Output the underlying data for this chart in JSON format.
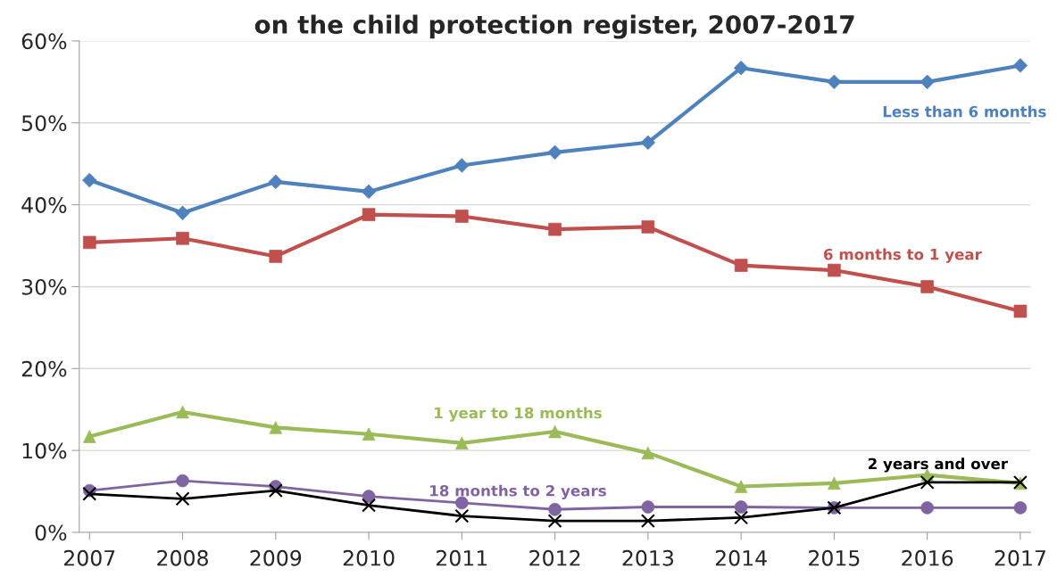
{
  "chart_data": {
    "type": "line",
    "title": "on the child protection register, 2007-2017",
    "categories": [
      "2007",
      "2008",
      "2009",
      "2010",
      "2011",
      "2012",
      "2013",
      "2014",
      "2015",
      "2016",
      "2017"
    ],
    "ylim": [
      0,
      60
    ],
    "yticks": [
      {
        "value": 0,
        "label": "0%"
      },
      {
        "value": 10,
        "label": "10%"
      },
      {
        "value": 20,
        "label": "20%"
      },
      {
        "value": 30,
        "label": "30%"
      },
      {
        "value": 40,
        "label": "40%"
      },
      {
        "value": 50,
        "label": "50%"
      },
      {
        "value": 60,
        "label": "60%"
      }
    ],
    "grid": "y",
    "legend": false,
    "series": [
      {
        "name": "Less than 6 months",
        "color": "#4f81bd",
        "marker": "diamond",
        "values": [
          43,
          39,
          42.8,
          41.6,
          44.8,
          46.4,
          47.6,
          56.7,
          55,
          55,
          57
        ]
      },
      {
        "name": "6 months to 1 year",
        "color": "#c0504d",
        "marker": "square",
        "values": [
          35.4,
          35.9,
          33.7,
          38.8,
          38.6,
          37,
          37.3,
          32.6,
          32,
          30,
          27
        ]
      },
      {
        "name": "1 year to 18 months",
        "color": "#9bbb59",
        "marker": "triangle",
        "values": [
          11.7,
          14.7,
          12.8,
          12,
          10.9,
          12.3,
          9.7,
          5.6,
          6,
          7,
          6
        ]
      },
      {
        "name": "18 months to 2 years",
        "color": "#8064a2",
        "marker": "circle",
        "values": [
          5.1,
          6.3,
          5.6,
          4.4,
          3.6,
          2.8,
          3.1,
          3.1,
          3,
          3,
          3
        ]
      },
      {
        "name": "2 years and over",
        "color": "#000000",
        "marker": "cross",
        "values": [
          4.7,
          4.1,
          5.1,
          3.3,
          2,
          1.4,
          1.4,
          1.8,
          3,
          6.1,
          6.1
        ]
      }
    ]
  }
}
